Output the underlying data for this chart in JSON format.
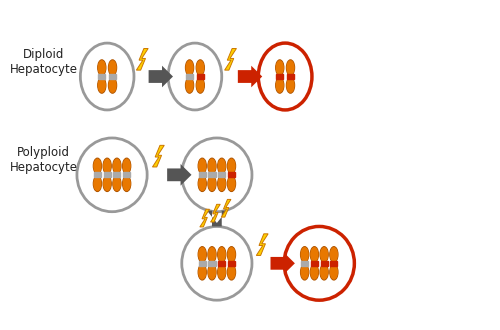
{
  "bg_color": "#ffffff",
  "cell_edge_normal": "#999999",
  "cell_edge_tumor": "#cc2200",
  "chr_body_color": "#e87800",
  "chr_edge_color": "#b05500",
  "chr_centromere_normal": "#aaaaaa",
  "chr_centromere_loh": "#cc2200",
  "arrow_gray": "#555555",
  "arrow_red": "#cc2200",
  "lightning_body": "#ffd000",
  "lightning_outline": "#cc7700",
  "text_color": "#222222",
  "label_diploid": "Diploid\nHepatocyte",
  "label_polyploid": "Polyploid\nHepatocyte",
  "figsize": [
    5.0,
    3.3
  ],
  "dpi": 100,
  "xlim": [
    0,
    10
  ],
  "ylim": [
    0,
    6.6
  ]
}
